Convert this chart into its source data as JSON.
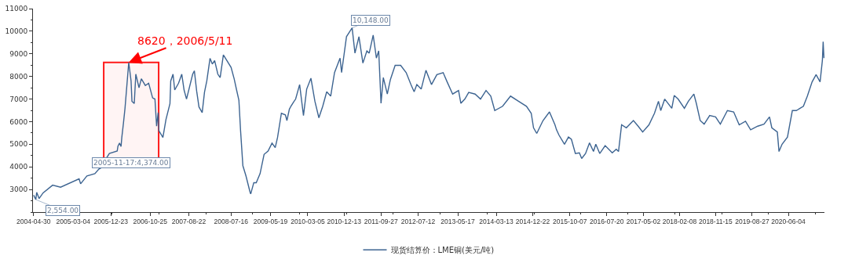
{
  "chart_data": {
    "type": "line",
    "xlim": [
      "2004-04-25",
      "2021-03-12"
    ],
    "ylim": [
      2000,
      11000
    ],
    "yticks": [
      3000,
      4000,
      5000,
      6000,
      7000,
      8000,
      9000,
      10000,
      11000
    ],
    "xticks": [
      {
        "value": "2004-04-30",
        "label": "2004-04-30"
      },
      {
        "value": "2005-03-04",
        "label": "2005-03-04"
      },
      {
        "value": "2005-12-23",
        "label": "2005-12-23"
      },
      {
        "value": "2006-10-25",
        "label": "2006-10-25"
      },
      {
        "value": "2007-08-22",
        "label": "2007-08-22"
      },
      {
        "value": "2008-07-16",
        "label": "2008-07-16"
      },
      {
        "value": "2009-05-19",
        "label": "2009-05-19"
      },
      {
        "value": "2010-03-05",
        "label": "2010-03-05"
      },
      {
        "value": "2010-12-13",
        "label": "2010-12-13"
      },
      {
        "value": "2011-09-27",
        "label": "2011-09-27"
      },
      {
        "value": "2012-07-12",
        "label": "2012-07-12"
      },
      {
        "value": "2013-05-17",
        "label": "2013-05-17"
      },
      {
        "value": "2014-03-13",
        "label": "2014-03-13"
      },
      {
        "value": "2014-12-22",
        "label": "2014-12-22"
      },
      {
        "value": "2015-10-07",
        "label": "2015-10-07"
      },
      {
        "value": "2016-07-20",
        "label": "2016-07-20"
      },
      {
        "value": "2017-05-02",
        "label": "2017-05-02"
      },
      {
        "value": "2018-02-08",
        "label": "2018-02-08"
      },
      {
        "value": "2018-11-15",
        "label": "2018-11-15"
      },
      {
        "value": "2019-08-27",
        "label": "2019-08-27"
      },
      {
        "value": "2020-06-04",
        "label": "2020-06-04"
      }
    ],
    "grid": false,
    "legend": "bottom",
    "marker": "none",
    "line_style": "solid",
    "x": [
      "2004-04-30",
      "2004-05-17",
      "2004-05-24",
      "2004-06-12",
      "2004-07-13",
      "2004-09-25",
      "2004-11-26",
      "2005-04-19",
      "2005-05-01",
      "2005-06-19",
      "2005-08-20",
      "2005-09-20",
      "2005-10-21",
      "2005-11-17",
      "2005-12-11",
      "2006-02-10",
      "2006-02-16",
      "2006-02-28",
      "2006-03-12",
      "2006-03-18",
      "2006-03-31",
      "2006-04-12",
      "2006-05-11",
      "2006-05-29",
      "2006-06-05",
      "2006-06-23",
      "2006-07-05",
      "2006-07-30",
      "2006-08-17",
      "2006-09-17",
      "2006-10-13",
      "2006-11-13",
      "2006-12-01",
      "2006-12-14",
      "2006-12-26",
      "2007-01-01",
      "2007-02-01",
      "2007-02-25",
      "2007-03-28",
      "2007-04-03",
      "2007-04-21",
      "2007-05-04",
      "2007-06-03",
      "2007-06-28",
      "2007-07-16",
      "2007-08-04",
      "2007-09-21",
      "2007-10-04",
      "2007-10-22",
      "2007-11-09",
      "2007-12-04",
      "2007-12-22",
      "2008-01-09",
      "2008-02-03",
      "2008-02-21",
      "2008-03-10",
      "2008-04-04",
      "2008-04-22",
      "2008-05-17",
      "2008-07-16",
      "2008-08-09",
      "2008-08-28",
      "2008-09-15",
      "2008-09-28",
      "2008-10-16",
      "2008-11-09",
      "2008-12-10",
      "2008-12-16",
      "2009-01-09",
      "2009-01-28",
      "2009-02-27",
      "2009-03-30",
      "2009-04-30",
      "2009-05-31",
      "2009-06-25",
      "2009-07-13",
      "2009-08-12",
      "2009-09-12",
      "2009-09-24",
      "2009-10-13",
      "2009-10-25",
      "2009-11-13",
      "2009-12-01",
      "2010-01-01",
      "2010-01-31",
      "2010-02-25",
      "2010-03-30",
      "2010-04-30",
      "2010-05-31",
      "2010-06-30",
      "2010-07-31",
      "2010-08-31",
      "2010-09-30",
      "2010-11-12",
      "2010-11-24",
      "2011-01-01",
      "2011-02-14",
      "2011-03-08",
      "2011-04-08",
      "2011-05-09",
      "2011-06-09",
      "2011-06-27",
      "2011-07-28",
      "2011-08-22",
      "2011-09-09",
      "2011-09-27",
      "2011-10-15",
      "2011-11-15",
      "2011-12-09",
      "2012-01-15",
      "2012-02-27",
      "2012-04-10",
      "2012-05-17",
      "2012-06-11",
      "2012-07-02",
      "2012-08-05",
      "2012-09-11",
      "2012-10-24",
      "2012-12-05",
      "2013-01-23",
      "2013-02-23",
      "2013-04-07",
      "2013-05-23",
      "2013-06-10",
      "2013-07-11",
      "2013-08-10",
      "2013-09-29",
      "2013-11-10",
      "2013-12-23",
      "2014-01-29",
      "2014-03-01",
      "2014-05-01",
      "2014-07-02",
      "2014-09-02",
      "2014-11-03",
      "2014-12-10",
      "2014-12-28",
      "2015-01-22",
      "2015-03-12",
      "2015-05-01",
      "2015-06-13",
      "2015-06-25",
      "2015-07-14",
      "2015-08-26",
      "2015-09-26",
      "2015-10-19",
      "2015-11-19",
      "2015-12-20",
      "2016-01-07",
      "2016-02-06",
      "2016-03-08",
      "2016-04-08",
      "2016-04-26",
      "2016-05-27",
      "2016-07-08",
      "2016-09-01",
      "2016-10-02",
      "2016-10-20",
      "2016-11-13",
      "2016-12-20",
      "2017-02-13",
      "2017-03-22",
      "2017-04-26",
      "2017-06-14",
      "2017-07-27",
      "2017-08-27",
      "2017-09-14",
      "2017-10-15",
      "2017-12-09",
      "2017-12-28",
      "2018-01-27",
      "2018-03-17",
      "2018-04-17",
      "2018-05-30",
      "2018-06-18",
      "2018-07-18",
      "2018-08-18",
      "2018-09-30",
      "2018-11-15",
      "2018-12-22",
      "2019-02-15",
      "2019-04-05",
      "2019-05-18",
      "2019-07-06",
      "2019-08-15",
      "2019-10-09",
      "2019-11-27",
      "2020-01-09",
      "2020-01-27",
      "2020-03-10",
      "2020-03-23",
      "2020-04-16",
      "2020-05-28",
      "2020-07-05",
      "2020-08-05",
      "2020-09-29",
      "2020-10-30",
      "2020-12-06",
      "2021-01-06",
      "2021-02-06",
      "2021-02-24",
      "2021-03-02",
      "2021-03-08"
    ],
    "series": [
      {
        "name": "现货结算价：LME铜(美元/吨)",
        "color": "#3d6491",
        "values": [
          2750,
          2554,
          2870,
          2600,
          2850,
          3190,
          3100,
          3470,
          3250,
          3600,
          3700,
          3900,
          4000,
          4374,
          4590,
          4700,
          4920,
          5050,
          4900,
          5300,
          5950,
          6600,
          8620,
          7800,
          6900,
          6800,
          8100,
          7500,
          7900,
          7600,
          7700,
          7050,
          7000,
          5800,
          6400,
          5600,
          5300,
          6100,
          6800,
          7800,
          8100,
          7400,
          7700,
          8100,
          7400,
          7000,
          8100,
          8250,
          7350,
          6650,
          6400,
          7300,
          7800,
          8800,
          8550,
          8700,
          8100,
          7950,
          8950,
          8400,
          7900,
          7400,
          6950,
          5600,
          4050,
          3600,
          2900,
          2800,
          3300,
          3300,
          3700,
          4550,
          4700,
          5050,
          4850,
          5300,
          6370,
          6300,
          6050,
          6550,
          6680,
          6850,
          7000,
          7640,
          6270,
          7440,
          7920,
          6900,
          6170,
          6680,
          7320,
          7130,
          8170,
          8810,
          8170,
          9760,
          10148,
          9030,
          9760,
          8590,
          9130,
          9030,
          9830,
          8810,
          9130,
          6810,
          7950,
          7220,
          7860,
          8490,
          8490,
          8170,
          7640,
          7320,
          7640,
          7440,
          8270,
          7640,
          8080,
          8170,
          7760,
          7220,
          7380,
          6810,
          7000,
          7290,
          7220,
          7000,
          7380,
          7130,
          6490,
          6680,
          7130,
          6900,
          6680,
          6370,
          5730,
          5480,
          6050,
          6430,
          5860,
          5640,
          5410,
          5000,
          5320,
          5220,
          4590,
          4620,
          4370,
          4590,
          5060,
          4680,
          5000,
          4590,
          4940,
          4620,
          4780,
          4680,
          5860,
          5730,
          6050,
          5800,
          5540,
          5860,
          6370,
          6900,
          6490,
          7000,
          6590,
          7160,
          7000,
          6590,
          6900,
          7220,
          6810,
          6050,
          5890,
          6270,
          6210,
          5890,
          6490,
          6430,
          5860,
          6020,
          5640,
          5800,
          5890,
          6210,
          5730,
          5540,
          4680,
          5000,
          5320,
          6490,
          6490,
          6680,
          7130,
          7760,
          8080,
          7760,
          8710,
          9540,
          8810
        ]
      }
    ],
    "annotations": [
      {
        "text": "8620，2006/5/11",
        "x": "2006-05-11",
        "y": 8620
      },
      {
        "text": "2,554.00",
        "x": "2004-05-17",
        "y": 2554
      },
      {
        "text": "10,148.00",
        "x": "2011-02-14",
        "y": 10148
      },
      {
        "text": "2005-11-17:4,374.00",
        "x": "2005-11-17",
        "y": 4374
      }
    ],
    "bands": [
      {
        "axis": "x",
        "from": "2005-10-28",
        "to": "2006-12-30",
        "color": "#ff0000"
      }
    ]
  }
}
